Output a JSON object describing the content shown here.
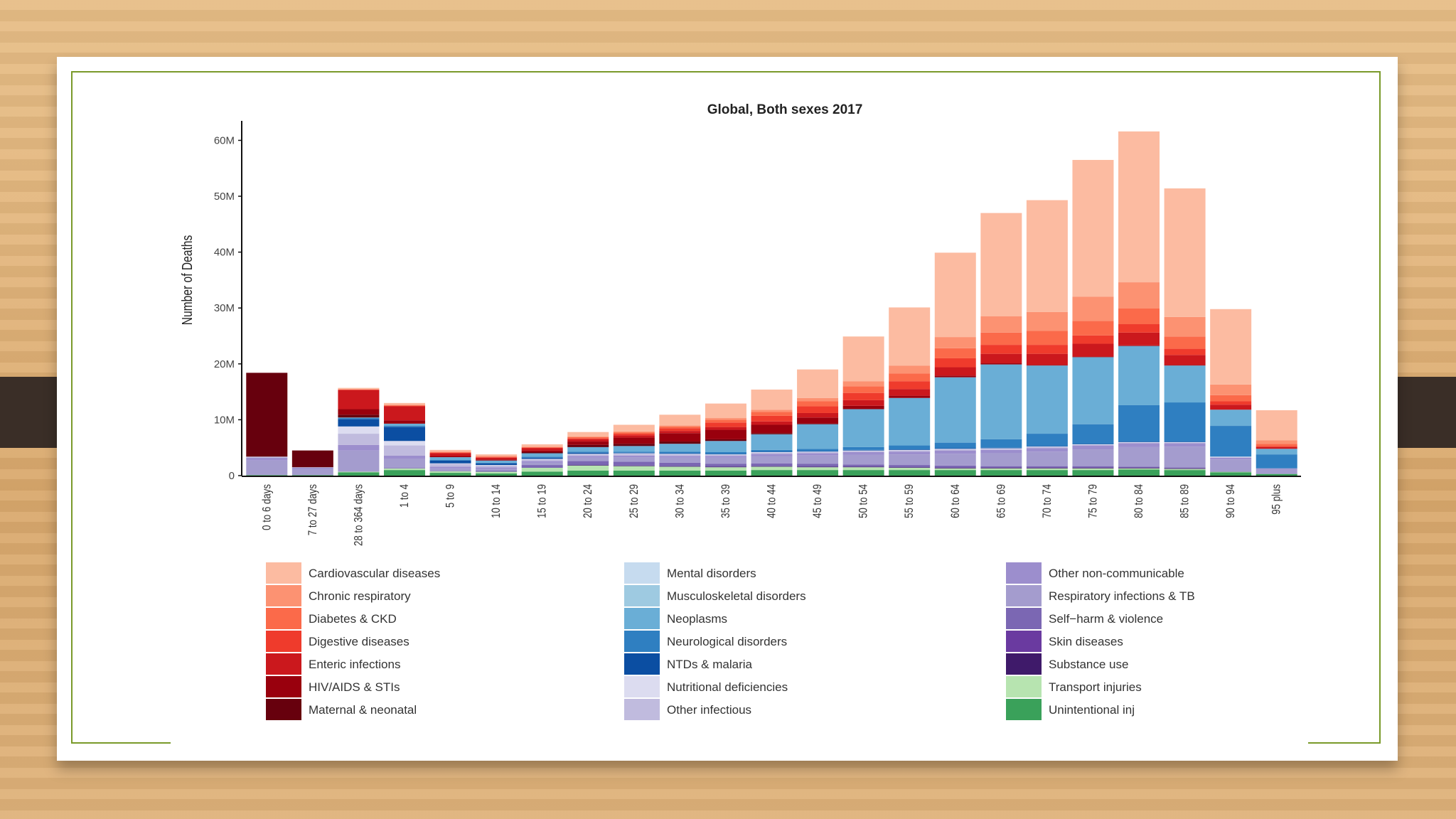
{
  "slide": {
    "accent_color": "#7a9a2a"
  },
  "chart_data": {
    "type": "bar",
    "stacked": true,
    "title": "Global, Both sexes 2017",
    "xlabel": "",
    "ylabel": "Number of Deaths",
    "ylim": [
      0,
      64000000
    ],
    "yticks": [
      0,
      10000000,
      20000000,
      30000000,
      40000000,
      50000000,
      60000000
    ],
    "ytick_labels": [
      "0",
      "10M",
      "20M",
      "30M",
      "40M",
      "50M",
      "60M"
    ],
    "categories": [
      "0 to 6 days",
      "7 to 27 days",
      "28 to 364 days",
      "1 to 4",
      "5 to 9",
      "10 to 14",
      "15 to 19",
      "20 to 24",
      "25 to 29",
      "30 to 34",
      "35 to 39",
      "40 to 44",
      "45 to 49",
      "50 to 54",
      "55 to 59",
      "60 to 64",
      "65 to 69",
      "70 to 74",
      "75 to 79",
      "80 to 84",
      "85 to 89",
      "90 to 94",
      "95 plus"
    ],
    "series": [
      {
        "name": "Unintentional inj",
        "color": "#3aa15a",
        "values": [
          0.1,
          0.1,
          0.6,
          1.0,
          0.5,
          0.4,
          0.7,
          0.9,
          0.9,
          0.9,
          0.9,
          1.0,
          1.0,
          1.0,
          1.0,
          1.0,
          1.0,
          1.0,
          1.0,
          1.1,
          1.0,
          0.6,
          0.3
        ]
      },
      {
        "name": "Transport injuries",
        "color": "#b7e4b0",
        "values": [
          0,
          0,
          0.1,
          0.3,
          0.3,
          0.3,
          0.7,
          0.9,
          0.8,
          0.7,
          0.6,
          0.6,
          0.5,
          0.5,
          0.4,
          0.3,
          0.3,
          0.3,
          0.3,
          0.2,
          0.2,
          0.1,
          0
        ]
      },
      {
        "name": "Substance use",
        "color": "#3f1a6a",
        "values": [
          0,
          0,
          0,
          0,
          0,
          0,
          0,
          0.1,
          0.1,
          0.1,
          0.1,
          0.1,
          0.1,
          0.1,
          0.1,
          0.1,
          0.1,
          0.1,
          0.1,
          0.1,
          0.1,
          0,
          0
        ]
      },
      {
        "name": "Skin diseases",
        "color": "#6a3aa0",
        "values": [
          0,
          0,
          0,
          0,
          0,
          0,
          0,
          0,
          0,
          0,
          0,
          0,
          0,
          0,
          0,
          0,
          0,
          0,
          0,
          0,
          0,
          0,
          0
        ]
      },
      {
        "name": "Self-harm & violence",
        "color": "#7b67b3",
        "values": [
          0,
          0,
          0,
          0.1,
          0.1,
          0.2,
          0.5,
          0.7,
          0.7,
          0.6,
          0.5,
          0.5,
          0.5,
          0.4,
          0.4,
          0.4,
          0.3,
          0.3,
          0.3,
          0.2,
          0.2,
          0.1,
          0
        ]
      },
      {
        "name": "Respiratory infections & TB",
        "color": "#a49cce",
        "values": [
          2.6,
          1.1,
          3.8,
          1.6,
          0.4,
          0.3,
          0.4,
          0.6,
          0.8,
          0.9,
          1.1,
          1.3,
          1.5,
          1.7,
          1.9,
          2.1,
          2.3,
          2.6,
          3.0,
          3.5,
          3.7,
          2.1,
          0.9
        ]
      },
      {
        "name": "Other non-communicable",
        "color": "#9c8ecd",
        "values": [
          0.5,
          0.2,
          1.0,
          0.6,
          0.3,
          0.3,
          0.3,
          0.3,
          0.3,
          0.3,
          0.3,
          0.4,
          0.4,
          0.5,
          0.5,
          0.6,
          0.6,
          0.6,
          0.7,
          0.7,
          0.6,
          0.3,
          0.1
        ]
      },
      {
        "name": "Other infectious",
        "color": "#c0bbde",
        "values": [
          0.2,
          0.1,
          2.0,
          1.8,
          0.5,
          0.3,
          0.3,
          0.3,
          0.3,
          0.3,
          0.2,
          0.2,
          0.2,
          0.2,
          0.2,
          0.2,
          0.2,
          0.2,
          0.1,
          0.1,
          0.1,
          0.1,
          0
        ]
      },
      {
        "name": "Nutritional deficiencies",
        "color": "#dcdcf0",
        "values": [
          0,
          0,
          1.3,
          0.8,
          0.1,
          0.1,
          0.1,
          0.1,
          0.1,
          0.1,
          0.1,
          0.1,
          0.1,
          0.1,
          0.1,
          0.1,
          0.1,
          0.1,
          0.1,
          0.1,
          0.1,
          0.1,
          0
        ]
      },
      {
        "name": "NTDs & malaria",
        "color": "#0b4ea2",
        "values": [
          0,
          0,
          1.3,
          2.5,
          0.5,
          0.3,
          0.2,
          0.2,
          0.1,
          0.1,
          0.1,
          0.1,
          0.1,
          0.1,
          0.1,
          0.1,
          0.1,
          0.1,
          0.1,
          0.1,
          0.1,
          0,
          0
        ]
      },
      {
        "name": "Neurological disorders",
        "color": "#2f7fc1",
        "values": [
          0,
          0,
          0.2,
          0.2,
          0.1,
          0.1,
          0.2,
          0.2,
          0.2,
          0.3,
          0.3,
          0.3,
          0.4,
          0.5,
          0.7,
          1.0,
          1.5,
          2.2,
          3.5,
          6.5,
          7.0,
          5.5,
          2.5
        ]
      },
      {
        "name": "Neoplasms",
        "color": "#6aaed6",
        "values": [
          0,
          0,
          0.1,
          0.4,
          0.5,
          0.4,
          0.6,
          0.8,
          1.0,
          1.4,
          2.0,
          2.8,
          4.4,
          6.8,
          8.5,
          11.7,
          13.4,
          12.2,
          12.0,
          10.6,
          6.6,
          2.9,
          1.0
        ]
      },
      {
        "name": "Musculoskeletal disorders",
        "color": "#9ecae1",
        "values": [
          0,
          0,
          0,
          0,
          0,
          0,
          0,
          0,
          0,
          0,
          0,
          0,
          0,
          0,
          0,
          0,
          0,
          0,
          0,
          0,
          0,
          0,
          0
        ]
      },
      {
        "name": "Mental disorders",
        "color": "#c6dbef",
        "values": [
          0,
          0,
          0,
          0,
          0,
          0,
          0,
          0,
          0,
          0,
          0,
          0,
          0,
          0,
          0,
          0,
          0,
          0,
          0,
          0,
          0,
          0,
          0
        ]
      },
      {
        "name": "Maternal & neonatal",
        "color": "#67000d",
        "values": [
          15.0,
          3.0,
          0.5,
          0,
          0,
          0,
          0.2,
          0.4,
          0.4,
          0.4,
          0.3,
          0.2,
          0.1,
          0,
          0,
          0,
          0,
          0,
          0,
          0,
          0,
          0,
          0
        ]
      },
      {
        "name": "HIV/AIDS & STIs",
        "color": "#99000d",
        "values": [
          0,
          0,
          1.0,
          0.6,
          0.2,
          0.2,
          0.3,
          0.6,
          1.1,
          1.5,
          1.7,
          1.5,
          1.1,
          0.6,
          0.4,
          0.3,
          0.2,
          0.1,
          0.1,
          0.1,
          0.1,
          0,
          0
        ]
      },
      {
        "name": "Enteric infections",
        "color": "#cb181d",
        "values": [
          0,
          0,
          3.4,
          2.5,
          0.5,
          0.3,
          0.4,
          0.4,
          0.4,
          0.4,
          0.5,
          0.6,
          0.8,
          1.0,
          1.2,
          1.5,
          1.7,
          2.0,
          2.3,
          2.3,
          1.8,
          0.9,
          0.3
        ]
      },
      {
        "name": "Digestive diseases",
        "color": "#ef3b2c",
        "values": [
          0,
          0,
          0.1,
          0.1,
          0.1,
          0.1,
          0.1,
          0.2,
          0.3,
          0.5,
          0.8,
          1.0,
          1.2,
          1.3,
          1.4,
          1.6,
          1.6,
          1.6,
          1.5,
          1.5,
          1.1,
          0.6,
          0.2
        ]
      },
      {
        "name": "Diabetes & CKD",
        "color": "#fb6a4a",
        "values": [
          0,
          0,
          0,
          0.1,
          0.1,
          0.1,
          0.1,
          0.2,
          0.2,
          0.3,
          0.5,
          0.7,
          0.9,
          1.2,
          1.4,
          1.8,
          2.2,
          2.5,
          2.6,
          2.8,
          2.2,
          1.1,
          0.4
        ]
      },
      {
        "name": "Chronic respiratory",
        "color": "#fc9272",
        "values": [
          0,
          0,
          0.1,
          0.1,
          0.1,
          0.1,
          0.1,
          0.1,
          0.2,
          0.2,
          0.3,
          0.4,
          0.6,
          0.9,
          1.4,
          2.0,
          2.9,
          3.4,
          4.3,
          4.7,
          3.5,
          1.9,
          0.6
        ]
      },
      {
        "name": "Cardiovascular diseases",
        "color": "#fcbba1",
        "values": [
          0,
          0,
          0.2,
          0.3,
          0.3,
          0.3,
          0.4,
          0.8,
          1.2,
          1.9,
          2.6,
          3.6,
          5.1,
          8.0,
          10.4,
          15.1,
          18.5,
          20.0,
          24.5,
          27.0,
          23.0,
          13.5,
          5.4
        ]
      }
    ],
    "legend": {
      "position": "bottom",
      "columns": [
        [
          "Cardiovascular diseases",
          "Chronic respiratory",
          "Diabetes & CKD",
          "Digestive diseases",
          "Enteric infections",
          "HIV/AIDS & STIs",
          "Maternal & neonatal"
        ],
        [
          "Mental disorders",
          "Musculoskeletal disorders",
          "Neoplasms",
          "Neurological disorders",
          "NTDs & malaria",
          "Nutritional deficiencies",
          "Other infectious"
        ],
        [
          "Other non-communicable",
          "Respiratory infections & TB",
          "Self−harm & violence",
          "Skin diseases",
          "Substance use",
          "Transport injuries",
          "Unintentional inj"
        ]
      ]
    },
    "value_unit": "millions of deaths"
  }
}
